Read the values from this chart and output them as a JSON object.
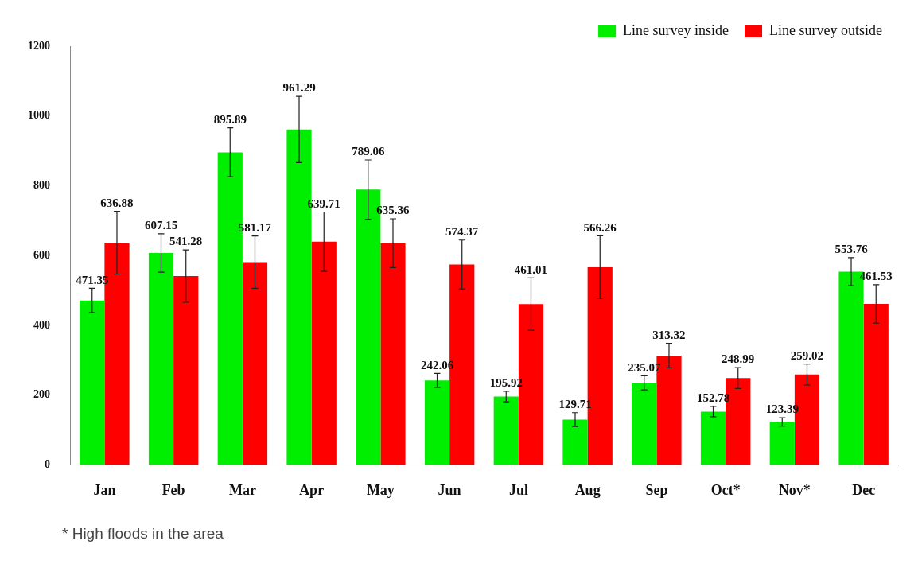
{
  "chart_data": {
    "type": "bar",
    "categories": [
      "Jan",
      "Feb",
      "Mar",
      "Apr",
      "May",
      "Jun",
      "Jul",
      "Aug",
      "Sep",
      "Oct*",
      "Nov*",
      "Dec"
    ],
    "series": [
      {
        "name": "Line survey inside",
        "color": "#00ee00",
        "values": [
          471.35,
          607.15,
          895.89,
          961.29,
          789.06,
          242.06,
          195.92,
          129.71,
          235.07,
          152.78,
          123.39,
          553.76
        ],
        "errors": [
          35,
          55,
          70,
          95,
          85,
          20,
          15,
          20,
          20,
          15,
          12,
          40
        ]
      },
      {
        "name": "Line survey outside",
        "color": "#ff0000",
        "values": [
          636.88,
          541.28,
          581.17,
          639.71,
          635.36,
          574.37,
          461.01,
          566.26,
          313.32,
          248.99,
          259.02,
          461.53
        ],
        "errors": [
          90,
          75,
          75,
          85,
          70,
          70,
          75,
          90,
          35,
          30,
          30,
          55
        ]
      }
    ],
    "ylim": [
      0,
      1200
    ],
    "yticks": [
      0,
      200,
      400,
      600,
      800,
      1000,
      1200
    ],
    "grid": false,
    "legend": "top right",
    "data_labels": true,
    "annotations": [
      "* High floods in the area"
    ]
  }
}
